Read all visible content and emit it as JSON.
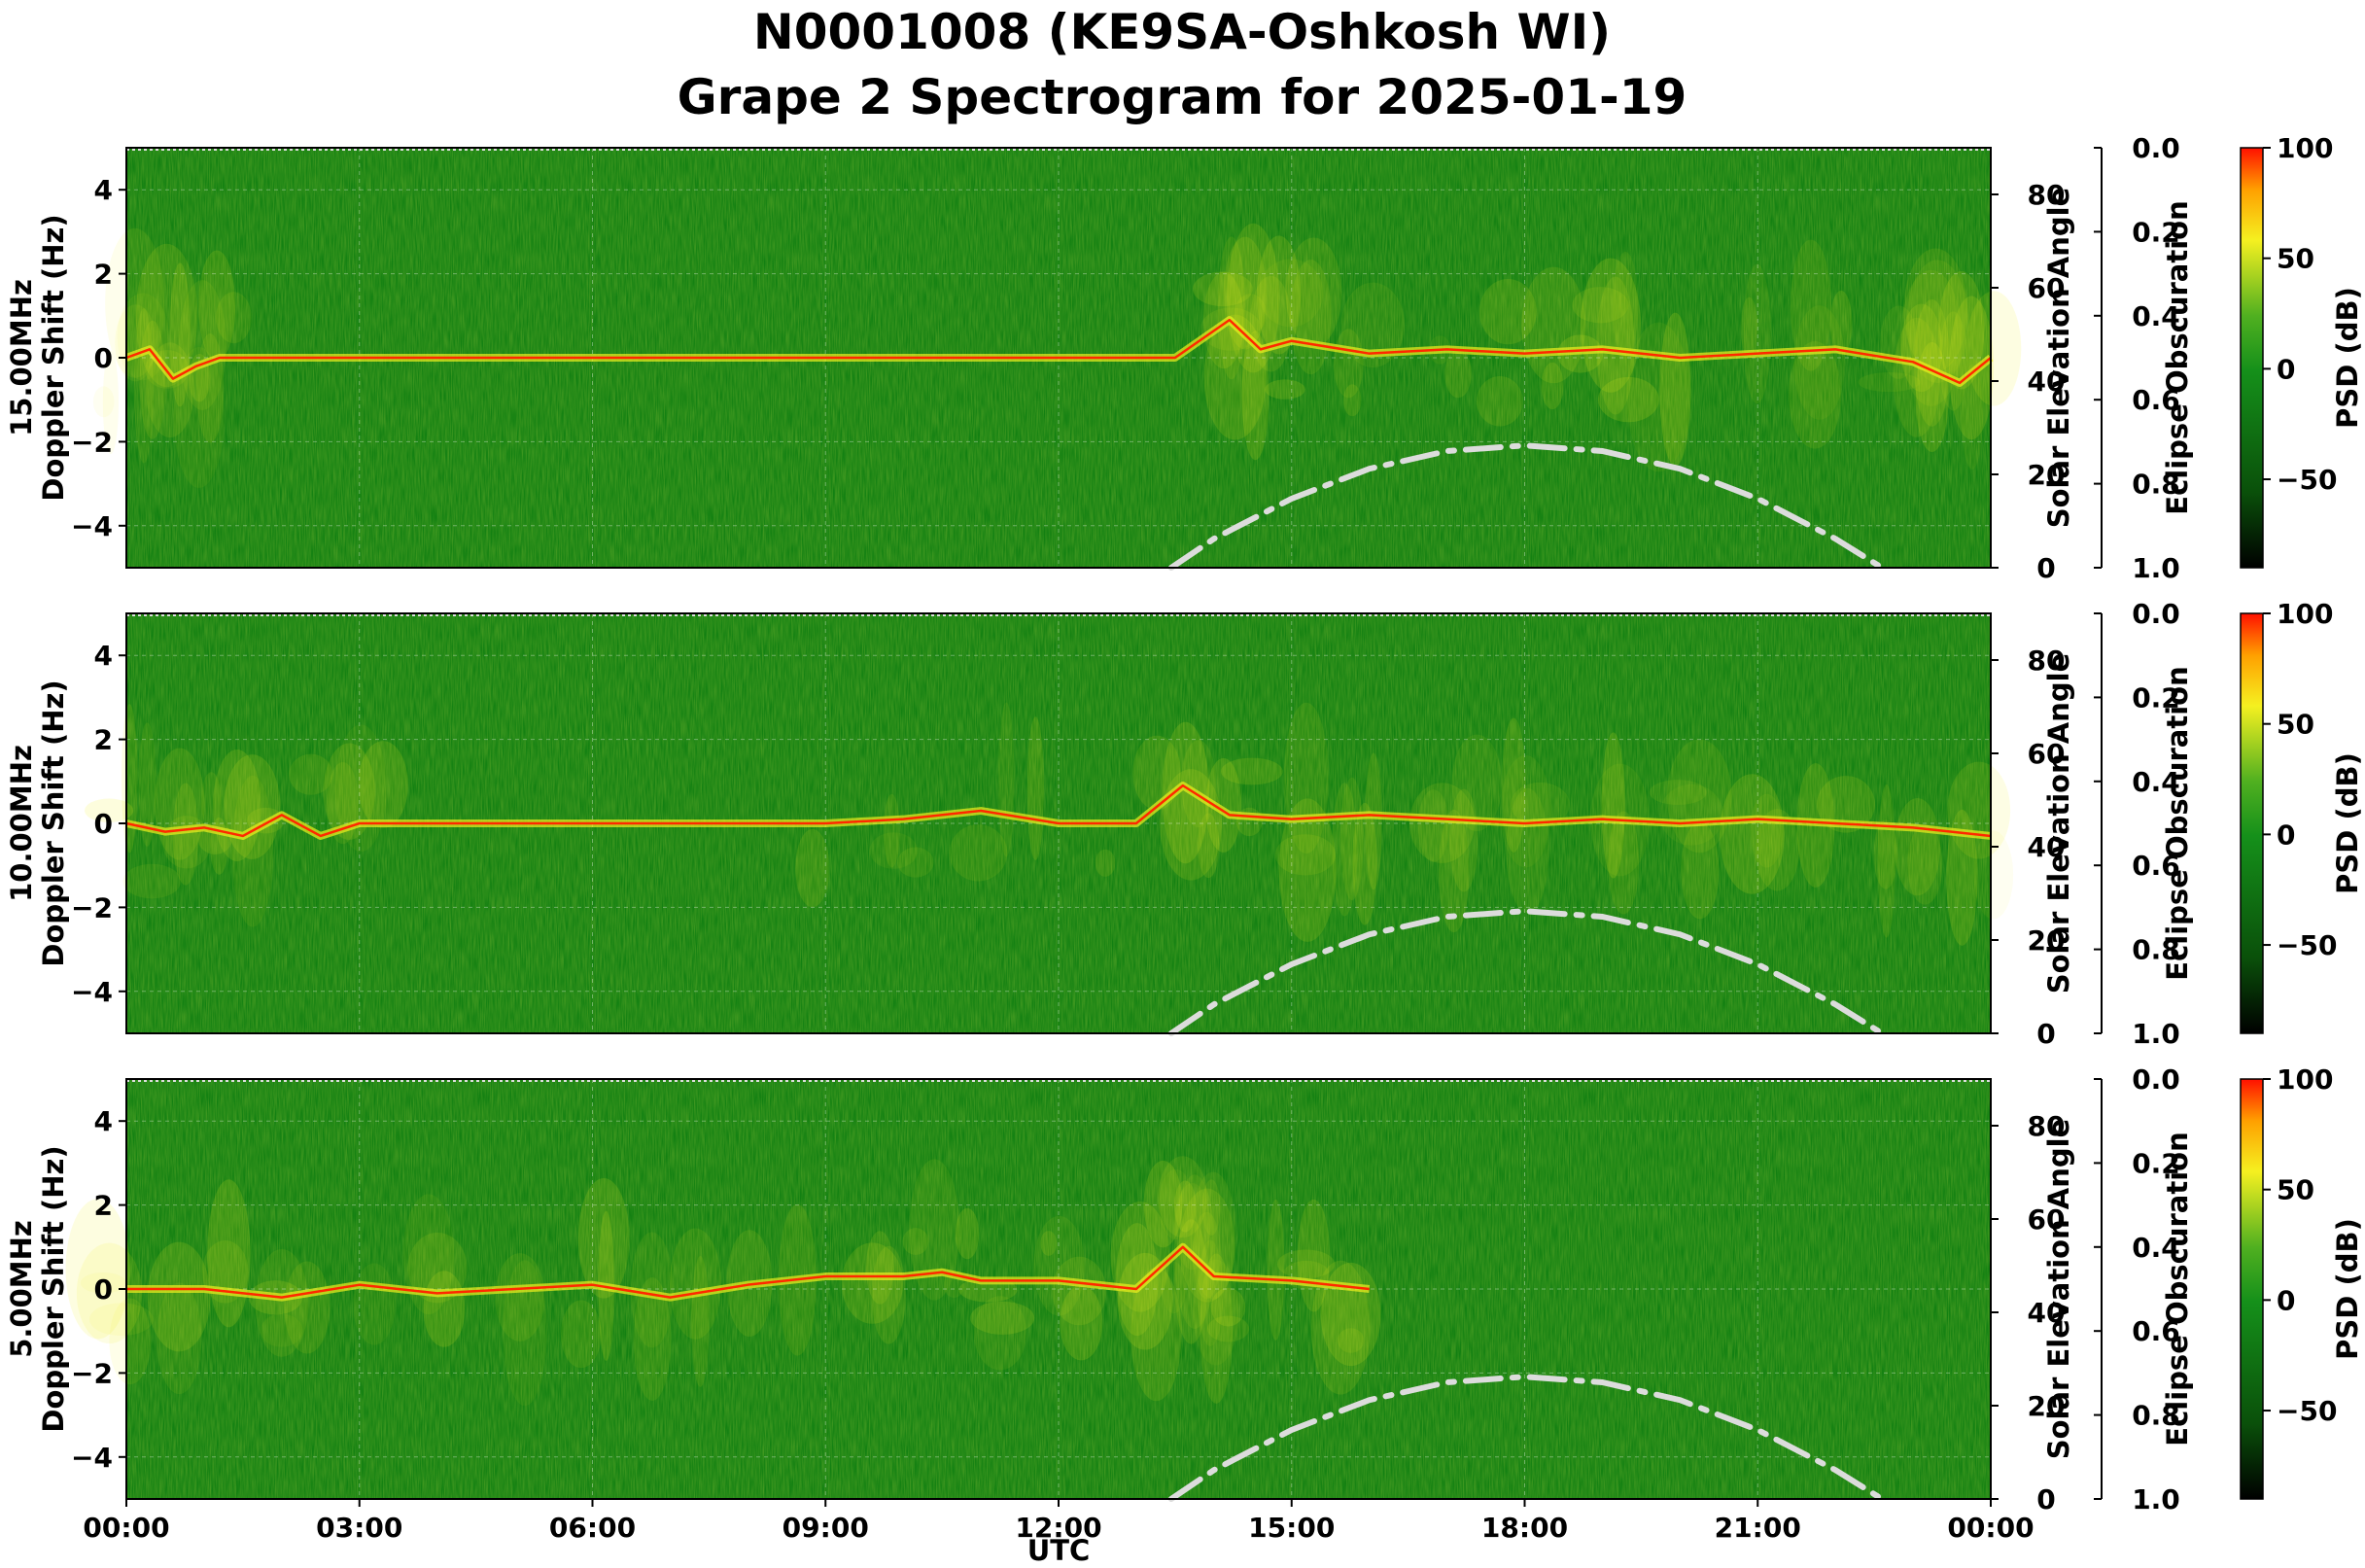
{
  "title_line1": "N0001008 (KE9SA-Oshkosh WI)",
  "title_line2": "Grape 2 Spectrogram for 2025-01-19",
  "xlabel": "UTC",
  "x_tick_labels": [
    "00:00",
    "03:00",
    "06:00",
    "09:00",
    "12:00",
    "15:00",
    "18:00",
    "21:00",
    "00:00"
  ],
  "y_tick_labels": [
    "4",
    "2",
    "0",
    "−2",
    "−4"
  ],
  "elev_tick_labels": [
    "0",
    "20",
    "40",
    "60",
    "80"
  ],
  "ecl_tick_labels": [
    "0.0",
    "0.2",
    "0.4",
    "0.6",
    "0.8",
    "1.0"
  ],
  "cb_tick_labels": [
    "100",
    "50",
    "0",
    "−50"
  ],
  "right_label": "Solar Elevation Angle",
  "ecl_label": "Eclipse Obscuration",
  "cb_label": "PSD (dB)",
  "colors": {
    "background": "#128012",
    "bright": "#f0f020",
    "peak": "#ff2800",
    "elevation_curve": "#dcdcdc"
  },
  "chart_data": [
    {
      "type": "heatmap",
      "panel_label_line1": "15.00MHz",
      "panel_label_line2": "Doppler Shift (Hz)",
      "xlim": [
        "00:00",
        "24:00"
      ],
      "ylim": [
        -5,
        5
      ],
      "y2lim": [
        0,
        90
      ],
      "y3lim": [
        1.0,
        0.0
      ],
      "colorbar_range_db": [
        -90,
        100
      ],
      "solar_elevation": {
        "x_hours": [
          13.45,
          14,
          15,
          16,
          17,
          18,
          19,
          20,
          21,
          22,
          22.6
        ],
        "y_deg": [
          0,
          6.2,
          14.8,
          21.2,
          25.0,
          26.2,
          25.0,
          21.2,
          14.8,
          6.2,
          0
        ]
      },
      "carrier_trace": {
        "x_hours": [
          0,
          0.3,
          0.6,
          0.9,
          1.2,
          13.5,
          14.2,
          14.6,
          15,
          16,
          17,
          18,
          19,
          20,
          21,
          22,
          23,
          23.6,
          24
        ],
        "y_hz": [
          0,
          0.2,
          -0.5,
          -0.2,
          0,
          0,
          0.9,
          0.2,
          0.4,
          0.1,
          0.2,
          0.1,
          0.2,
          0,
          0.1,
          0.2,
          -0.1,
          -0.6,
          0
        ]
      }
    },
    {
      "type": "heatmap",
      "panel_label_line1": "10.00MHz",
      "panel_label_line2": "Doppler Shift (Hz)",
      "xlim": [
        "00:00",
        "24:00"
      ],
      "ylim": [
        -5,
        5
      ],
      "y2lim": [
        0,
        90
      ],
      "y3lim": [
        1.0,
        0.0
      ],
      "colorbar_range_db": [
        -90,
        100
      ],
      "solar_elevation": {
        "x_hours": [
          13.45,
          14,
          15,
          16,
          17,
          18,
          19,
          20,
          21,
          22,
          22.6
        ],
        "y_deg": [
          0,
          6.2,
          14.8,
          21.2,
          25.0,
          26.2,
          25.0,
          21.2,
          14.8,
          6.2,
          0
        ]
      },
      "carrier_trace": {
        "x_hours": [
          0,
          0.5,
          1,
          1.5,
          2,
          2.5,
          3,
          9,
          10,
          11,
          12,
          13,
          13.6,
          14.2,
          15,
          16,
          17,
          18,
          19,
          20,
          21,
          22,
          23,
          24
        ],
        "y_hz": [
          0,
          -0.2,
          -0.1,
          -0.3,
          0.2,
          -0.3,
          0,
          0,
          0.1,
          0.3,
          0,
          0,
          0.9,
          0.2,
          0.1,
          0.2,
          0.1,
          0,
          0.1,
          0,
          0.1,
          0,
          -0.1,
          -0.3
        ]
      }
    },
    {
      "type": "heatmap",
      "panel_label_line1": "5.00MHz",
      "panel_label_line2": "Doppler Shift (Hz)",
      "xlim": [
        "00:00",
        "24:00"
      ],
      "ylim": [
        -5,
        5
      ],
      "y2lim": [
        0,
        90
      ],
      "y3lim": [
        1.0,
        0.0
      ],
      "colorbar_range_db": [
        -90,
        100
      ],
      "solar_elevation": {
        "x_hours": [
          13.45,
          14,
          15,
          16,
          17,
          18,
          19,
          20,
          21,
          22,
          22.6
        ],
        "y_deg": [
          0,
          6.2,
          14.8,
          21.2,
          25.0,
          26.2,
          25.0,
          21.2,
          14.8,
          6.2,
          0
        ]
      },
      "carrier_trace": {
        "x_hours": [
          0,
          1,
          2,
          3,
          4,
          5,
          6,
          7,
          8,
          9,
          10,
          10.5,
          11,
          12,
          13,
          13.6,
          14,
          15,
          16
        ],
        "y_hz": [
          0,
          0,
          -0.2,
          0.1,
          -0.1,
          0,
          0.1,
          -0.2,
          0.1,
          0.3,
          0.3,
          0.4,
          0.2,
          0.2,
          0,
          1.0,
          0.3,
          0.2,
          0
        ]
      }
    }
  ]
}
